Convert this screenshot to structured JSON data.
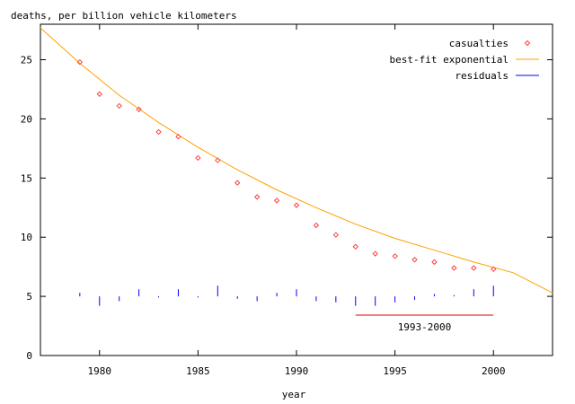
{
  "chart_data": {
    "type": "scatter",
    "ylabel": "deaths, per billion vehicle kilometers",
    "xlabel": "year",
    "xlim": [
      1977,
      2003
    ],
    "ylim": [
      0,
      28
    ],
    "x_ticks": [
      1980,
      1985,
      1990,
      1995,
      2000
    ],
    "y_ticks": [
      0,
      5,
      10,
      15,
      20,
      25
    ],
    "grid": false,
    "legend_position": "top-right",
    "series": [
      {
        "name": "casualties",
        "kind": "points",
        "color": "#ff4040",
        "x": [
          1979,
          1980,
          1981,
          1982,
          1983,
          1984,
          1985,
          1986,
          1987,
          1988,
          1989,
          1990,
          1991,
          1992,
          1993,
          1994,
          1995,
          1996,
          1997,
          1998,
          1999,
          2000
        ],
        "y": [
          24.8,
          22.1,
          21.1,
          20.8,
          18.9,
          18.5,
          16.7,
          16.5,
          14.6,
          13.4,
          13.1,
          12.7,
          11.0,
          10.2,
          9.2,
          8.6,
          8.4,
          8.1,
          7.9,
          7.4,
          7.4,
          7.3
        ]
      },
      {
        "name": "best-fit exponential",
        "kind": "curve",
        "color": "#ffa000",
        "x": [
          1977,
          1979,
          1981,
          1983,
          1985,
          1987,
          1989,
          1991,
          1993,
          1995,
          1997,
          1999,
          2001,
          2003
        ],
        "y": [
          27.7,
          24.7,
          22.0,
          19.7,
          17.6,
          15.7,
          14.0,
          12.5,
          11.1,
          9.9,
          8.9,
          7.9,
          7.0,
          5.3
        ]
      },
      {
        "name": "residuals",
        "kind": "impulses",
        "color": "#0000ff",
        "baseline": 5,
        "x": [
          1979,
          1980,
          1981,
          1982,
          1983,
          1984,
          1985,
          1986,
          1987,
          1988,
          1989,
          1990,
          1991,
          1992,
          1993,
          1994,
          1995,
          1996,
          1997,
          1998,
          1999,
          2000
        ],
        "y": [
          5.3,
          4.2,
          4.6,
          5.6,
          4.9,
          5.6,
          4.9,
          5.9,
          4.8,
          4.6,
          5.3,
          5.6,
          4.6,
          4.5,
          4.2,
          4.2,
          4.5,
          4.7,
          5.2,
          5.1,
          5.6,
          5.9
        ]
      }
    ],
    "annotations": [
      {
        "label": "1993-2000",
        "x_start": 1993,
        "x_end": 2000,
        "y": 2.5,
        "color": "#e00000"
      }
    ]
  }
}
